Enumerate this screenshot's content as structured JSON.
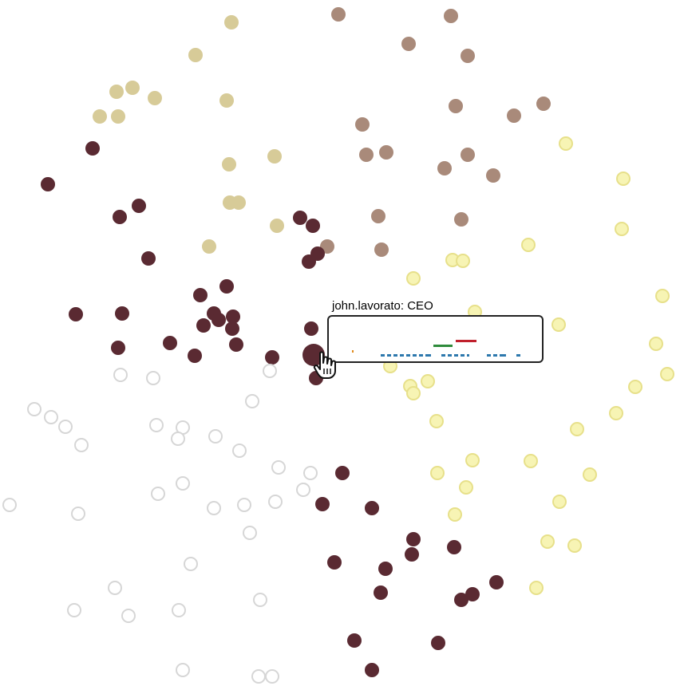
{
  "colors": {
    "group_khaki": "#d7cb98",
    "group_taupe": "#a98a7a",
    "group_maroon": "#5a2a32",
    "group_yellow": "#f7f4b4",
    "group_yellow_stroke": "#e7e08a",
    "group_empty_stroke": "#d6d6d6",
    "tooltip_border": "#222222",
    "mark_orange": "#e08a1c",
    "mark_green": "#2e8b3b",
    "mark_red": "#c0202c",
    "mark_blue": "#2d78ad"
  },
  "tooltip": {
    "label": "john.lavorato: CEO"
  },
  "chart_data": {
    "type": "scatter",
    "title": "",
    "xlabel": "",
    "ylabel": "",
    "groups": [
      {
        "color": "khaki",
        "points": [
          [
            290,
            28
          ],
          [
            245,
            69
          ],
          [
            166,
            110
          ],
          [
            146,
            115
          ],
          [
            194,
            123
          ],
          [
            284,
            126
          ],
          [
            125,
            146
          ],
          [
            148,
            146
          ],
          [
            344,
            196
          ],
          [
            287,
            206
          ],
          [
            288,
            254
          ],
          [
            299,
            254
          ],
          [
            347,
            283
          ],
          [
            262,
            309
          ]
        ]
      },
      {
        "color": "taupe",
        "points": [
          [
            424,
            18
          ],
          [
            565,
            20
          ],
          [
            512,
            55
          ],
          [
            586,
            70
          ],
          [
            571,
            133
          ],
          [
            681,
            130
          ],
          [
            644,
            145
          ],
          [
            454,
            156
          ],
          [
            459,
            194
          ],
          [
            484,
            191
          ],
          [
            586,
            194
          ],
          [
            557,
            211
          ],
          [
            618,
            220
          ],
          [
            474,
            271
          ],
          [
            578,
            275
          ],
          [
            410,
            309
          ],
          [
            478,
            313
          ]
        ]
      },
      {
        "color": "maroon",
        "points": [
          [
            116,
            186
          ],
          [
            60,
            231
          ],
          [
            174,
            258
          ],
          [
            150,
            272
          ],
          [
            376,
            273
          ],
          [
            392,
            283
          ],
          [
            186,
            324
          ],
          [
            398,
            318
          ],
          [
            387,
            328
          ],
          [
            284,
            359
          ],
          [
            251,
            370
          ],
          [
            95,
            394
          ],
          [
            153,
            393
          ],
          [
            268,
            393
          ],
          [
            292,
            397
          ],
          [
            255,
            408
          ],
          [
            274,
            401
          ],
          [
            291,
            412
          ],
          [
            390,
            412
          ],
          [
            148,
            436
          ],
          [
            213,
            430
          ],
          [
            296,
            432
          ],
          [
            244,
            446
          ],
          [
            341,
            448
          ],
          [
            396,
            474
          ],
          [
            429,
            593
          ],
          [
            404,
            632
          ],
          [
            466,
            637
          ],
          [
            518,
            676
          ],
          [
            516,
            695
          ],
          [
            569,
            686
          ],
          [
            419,
            705
          ],
          [
            483,
            713
          ],
          [
            622,
            730
          ],
          [
            592,
            745
          ],
          [
            578,
            752
          ],
          [
            477,
            743
          ],
          [
            444,
            803
          ],
          [
            549,
            806
          ],
          [
            466,
            840
          ]
        ]
      },
      {
        "color": "yellow",
        "points": [
          [
            709,
            180
          ],
          [
            781,
            224
          ],
          [
            779,
            287
          ],
          [
            662,
            307
          ],
          [
            567,
            326
          ],
          [
            580,
            327
          ],
          [
            518,
            349
          ],
          [
            830,
            371
          ],
          [
            595,
            391
          ],
          [
            700,
            407
          ],
          [
            822,
            431
          ],
          [
            836,
            469
          ],
          [
            489,
            459
          ],
          [
            514,
            484
          ],
          [
            518,
            493
          ],
          [
            536,
            478
          ],
          [
            796,
            485
          ],
          [
            772,
            518
          ],
          [
            547,
            528
          ],
          [
            723,
            538
          ],
          [
            592,
            577
          ],
          [
            665,
            578
          ],
          [
            548,
            593
          ],
          [
            739,
            595
          ],
          [
            584,
            611
          ],
          [
            701,
            629
          ],
          [
            570,
            645
          ],
          [
            686,
            679
          ],
          [
            720,
            684
          ],
          [
            672,
            737
          ]
        ]
      },
      {
        "color": "empty",
        "points": [
          [
            151,
            470
          ],
          [
            192,
            474
          ],
          [
            338,
            465
          ],
          [
            43,
            513
          ],
          [
            64,
            523
          ],
          [
            82,
            535
          ],
          [
            316,
            503
          ],
          [
            102,
            558
          ],
          [
            196,
            533
          ],
          [
            229,
            536
          ],
          [
            223,
            550
          ],
          [
            270,
            547
          ],
          [
            300,
            565
          ],
          [
            349,
            586
          ],
          [
            389,
            593
          ],
          [
            229,
            606
          ],
          [
            198,
            619
          ],
          [
            380,
            614
          ],
          [
            268,
            637
          ],
          [
            306,
            633
          ],
          [
            345,
            629
          ],
          [
            12,
            633
          ],
          [
            98,
            644
          ],
          [
            313,
            668
          ],
          [
            239,
            707
          ],
          [
            144,
            737
          ],
          [
            326,
            752
          ],
          [
            93,
            765
          ],
          [
            161,
            772
          ],
          [
            224,
            765
          ],
          [
            229,
            840
          ],
          [
            324,
            848
          ],
          [
            341,
            848
          ]
        ]
      }
    ],
    "highlighted": {
      "x": 393,
      "y": 445,
      "color": "maroon",
      "label": "john.lavorato: CEO"
    },
    "sparkline_marks": [
      {
        "color": "orange",
        "segments": [
          [
            441,
            443
          ]
        ]
      },
      {
        "color": "green",
        "segments": [
          [
            543,
            567
          ]
        ]
      },
      {
        "color": "red",
        "segments": [
          [
            571,
            597
          ]
        ]
      },
      {
        "color": "blue",
        "segments": [
          [
            477,
            482
          ],
          [
            485,
            490
          ],
          [
            493,
            498
          ],
          [
            501,
            506
          ],
          [
            509,
            514
          ],
          [
            517,
            522
          ],
          [
            525,
            530
          ],
          [
            533,
            540
          ],
          [
            553,
            558
          ],
          [
            561,
            566
          ],
          [
            569,
            574
          ],
          [
            577,
            582
          ],
          [
            585,
            588
          ],
          [
            610,
            615
          ],
          [
            618,
            623
          ],
          [
            626,
            634
          ],
          [
            647,
            652
          ]
        ]
      }
    ]
  }
}
